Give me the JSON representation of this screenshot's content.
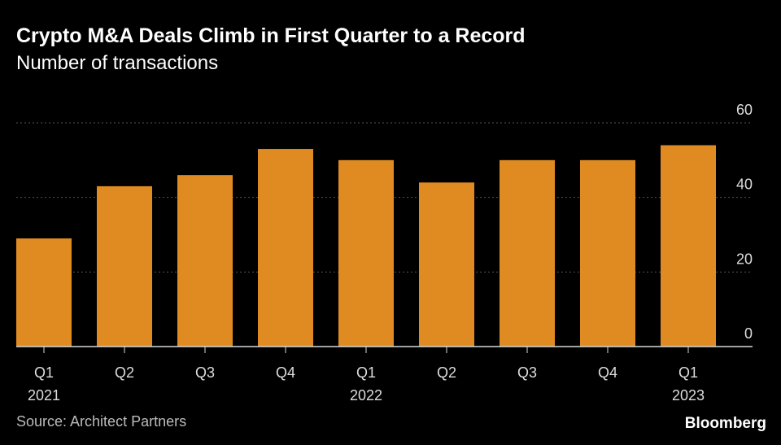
{
  "header": {
    "title": "Crypto M&A Deals Climb in First Quarter to a Record",
    "subtitle": "Number of transactions"
  },
  "footer": {
    "source": "Source: Architect Partners",
    "brand": "Bloomberg"
  },
  "colors": {
    "bar": "#e08b22",
    "grid": "#555555",
    "axis": "#d8d8d8",
    "text": "#dddddd"
  },
  "chart_data": {
    "type": "bar",
    "title": "Crypto M&A Deals Climb in First Quarter to a Record",
    "subtitle": "Number of transactions",
    "categories": [
      "Q1",
      "Q2",
      "Q3",
      "Q4",
      "Q1",
      "Q2",
      "Q3",
      "Q4",
      "Q1"
    ],
    "year_labels": [
      "2021",
      "",
      "",
      "",
      "2022",
      "",
      "",
      "",
      "2023"
    ],
    "values": [
      29,
      43,
      46,
      53,
      50,
      44,
      50,
      50,
      54
    ],
    "ylim": [
      0,
      60
    ],
    "yticks": [
      0,
      20,
      40,
      60
    ],
    "xlabel": "",
    "ylabel": "",
    "grid": true,
    "source": "Source: Architect Partners"
  }
}
